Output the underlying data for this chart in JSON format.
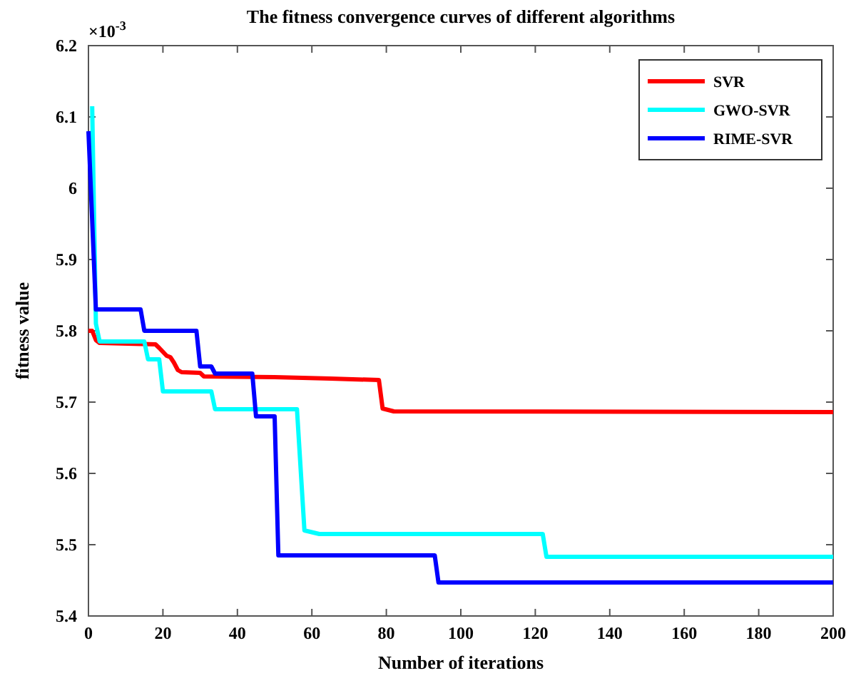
{
  "chart_data": {
    "type": "line",
    "title": "The fitness convergence curves of different algorithms",
    "xlabel": "Number of iterations",
    "ylabel": "fitness value",
    "annotations": [
      "×10$^{-3}$"
    ],
    "xlim": [
      0,
      200
    ],
    "xticks": [
      0,
      20,
      40,
      60,
      80,
      100,
      120,
      140,
      160,
      180,
      200
    ],
    "ylim": [
      5.4,
      6.2
    ],
    "yticks": [
      5.4,
      5.5,
      5.6,
      5.7,
      5.8,
      5.9,
      6,
      6.1,
      6.2
    ],
    "legend": "top right",
    "grid": false,
    "marker": "none",
    "line_style": "solid",
    "series": [
      {
        "name": "SVR",
        "color": "#ff0000",
        "x": [
          0,
          1,
          2,
          3,
          18,
          19,
          21,
          22,
          23,
          24,
          25,
          30,
          31,
          50,
          65,
          78,
          79,
          82,
          200
        ],
        "values": [
          5.8,
          5.8,
          5.787,
          5.783,
          5.781,
          5.776,
          5.765,
          5.763,
          5.755,
          5.745,
          5.742,
          5.741,
          5.736,
          5.735,
          5.733,
          5.731,
          5.691,
          5.687,
          5.686
        ]
      },
      {
        "name": "GWO-SVR",
        "color": "#00ffff",
        "x": [
          1,
          2,
          3,
          15,
          16,
          19,
          20,
          33,
          34,
          56,
          58,
          62,
          122,
          123,
          200
        ],
        "values": [
          6.115,
          5.81,
          5.785,
          5.785,
          5.76,
          5.76,
          5.715,
          5.715,
          5.69,
          5.69,
          5.52,
          5.515,
          5.515,
          5.483,
          5.483
        ]
      },
      {
        "name": "RIME-SVR",
        "color": "#0000ff",
        "x": [
          0,
          2,
          14,
          15,
          29,
          30,
          33,
          34,
          44,
          45,
          50,
          51,
          93,
          94,
          200
        ],
        "values": [
          6.08,
          5.83,
          5.83,
          5.8,
          5.8,
          5.75,
          5.75,
          5.74,
          5.74,
          5.68,
          5.68,
          5.485,
          5.485,
          5.447,
          5.447
        ]
      }
    ]
  }
}
